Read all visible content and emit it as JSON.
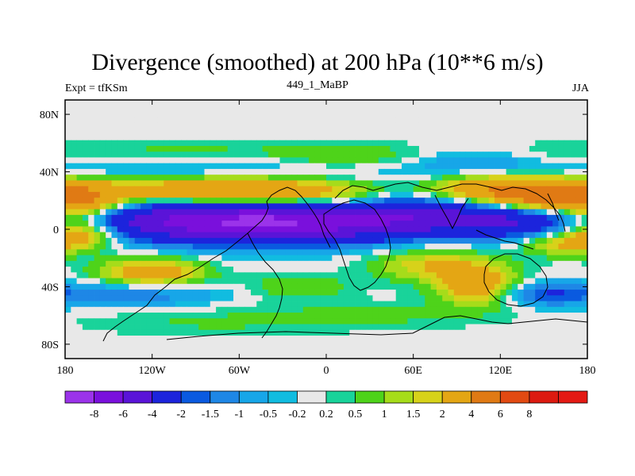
{
  "chart_data": {
    "type": "heatmap",
    "title": "Divergence (smoothed) at 200 hPa (10**6 m/s)",
    "subtitle": "449_1_MaBP",
    "left_label": "Expt = tfKSm",
    "right_label": "JJA",
    "x_axis": {
      "range": [
        -180,
        180
      ],
      "ticks": [
        {
          "value": -180,
          "label": "180"
        },
        {
          "value": -120,
          "label": "120W"
        },
        {
          "value": -60,
          "label": "60W"
        },
        {
          "value": 0,
          "label": "0"
        },
        {
          "value": 60,
          "label": "60E"
        },
        {
          "value": 120,
          "label": "120E"
        },
        {
          "value": 180,
          "label": "180"
        }
      ]
    },
    "y_axis": {
      "range": [
        -90,
        90
      ],
      "ticks": [
        {
          "value": 80,
          "label": "80N"
        },
        {
          "value": 40,
          "label": "40N"
        },
        {
          "value": 0,
          "label": "0"
        },
        {
          "value": -40,
          "label": "40S"
        },
        {
          "value": -80,
          "label": "80S"
        }
      ]
    },
    "colorbar": {
      "colors": [
        "#9b33ea",
        "#7a10dc",
        "#5a14d8",
        "#1c24dc",
        "#0a5ae0",
        "#1e87e6",
        "#17a6e8",
        "#11bce0",
        "#e8e8e8",
        "#19d39a",
        "#4ed31a",
        "#a6dc1a",
        "#d7d21a",
        "#e4a614",
        "#e07a14",
        "#e24a12",
        "#dc1a10",
        "#e41a14"
      ],
      "labels": [
        "-8",
        "-6",
        "-4",
        "-2",
        "-1.5",
        "-1",
        "-0.5",
        "-0.2",
        "0.2",
        "0.5",
        "1",
        "1.5",
        "2",
        "4",
        "6",
        "8"
      ]
    },
    "features": [
      {
        "lon": -90,
        "lat": 8,
        "slon": 70,
        "slat": 11,
        "v": -6
      },
      {
        "lon": -15,
        "lat": 5,
        "slon": 55,
        "slat": 10,
        "v": -5
      },
      {
        "lon": 55,
        "lat": 10,
        "slon": 30,
        "slat": 9,
        "v": -3
      },
      {
        "lon": 120,
        "lat": 10,
        "slon": 35,
        "slat": 10,
        "v": -5
      },
      {
        "lon": -130,
        "lat": 25,
        "slon": 70,
        "slat": 10,
        "v": 3
      },
      {
        "lon": -55,
        "lat": 25,
        "slon": 40,
        "slat": 8,
        "v": 4
      },
      {
        "lon": 10,
        "lat": 20,
        "slon": 30,
        "slat": 10,
        "v": 2
      },
      {
        "lon": 105,
        "lat": 25,
        "slon": 30,
        "slat": 10,
        "v": 3
      },
      {
        "lon": 145,
        "lat": 22,
        "slon": 25,
        "slat": 9,
        "v": 5
      },
      {
        "lon": -170,
        "lat": 18,
        "slon": 20,
        "slat": 8,
        "v": 4
      },
      {
        "lon": -80,
        "lat": 40,
        "slon": 100,
        "slat": 7,
        "v": -1.5
      },
      {
        "lon": 100,
        "lat": 45,
        "slon": 50,
        "slat": 7,
        "v": -1.5
      },
      {
        "lon": -100,
        "lat": 53,
        "slon": 70,
        "slat": 6,
        "v": 0.7
      },
      {
        "lon": 15,
        "lat": 48,
        "slon": 35,
        "slat": 7,
        "v": 1.2
      },
      {
        "lon": 60,
        "lat": 48,
        "slon": 25,
        "slat": 7,
        "v": 0.6
      },
      {
        "lon": 150,
        "lat": 50,
        "slon": 30,
        "slat": 7,
        "v": 0.6
      },
      {
        "lon": -120,
        "lat": -30,
        "slon": 25,
        "slat": 7,
        "v": 3
      },
      {
        "lon": 75,
        "lat": -25,
        "slon": 30,
        "slat": 8,
        "v": 2
      },
      {
        "lon": 105,
        "lat": -40,
        "slon": 20,
        "slat": 9,
        "v": 3
      },
      {
        "lon": -20,
        "lat": -40,
        "slon": 25,
        "slat": 6,
        "v": 1
      },
      {
        "lon": 160,
        "lat": -10,
        "slon": 20,
        "slat": 6,
        "v": 2
      },
      {
        "lon": -170,
        "lat": -2,
        "slon": 20,
        "slat": 8,
        "v": 4
      },
      {
        "lon": -130,
        "lat": -45,
        "slon": 40,
        "slat": 6,
        "v": -1.5
      },
      {
        "lon": 150,
        "lat": -45,
        "slon": 25,
        "slat": 6,
        "v": -2
      },
      {
        "lon": 30,
        "lat": -60,
        "slon": 60,
        "slat": 7,
        "v": 0.6
      },
      {
        "lon": -90,
        "lat": -65,
        "slon": 60,
        "slat": 7,
        "v": 0.5
      }
    ]
  }
}
